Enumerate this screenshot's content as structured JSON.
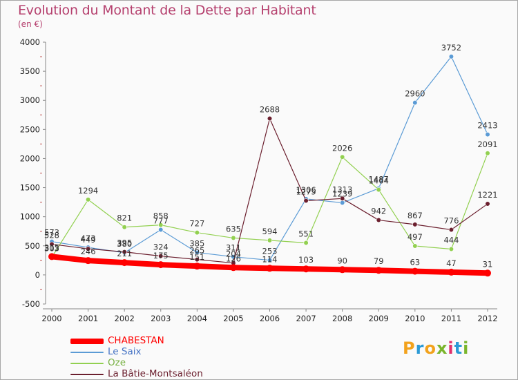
{
  "title": "Evolution du Montant de la Dette par Habitant",
  "subtitle": "(en €)",
  "logo": {
    "letters": [
      "P",
      "r",
      "o",
      "x",
      "i",
      "t",
      "i"
    ],
    "colors": [
      "#f2a21c",
      "#2b9ad6",
      "#f2a21c",
      "#7ab52c",
      "#e1306c",
      "#2b9ad6",
      "#7ab52c"
    ]
  },
  "chart_data": {
    "type": "line",
    "x": [
      "2000",
      "2001",
      "2002",
      "2003",
      "2004",
      "2005",
      "2006",
      "2007",
      "2008",
      "2009",
      "2010",
      "2011",
      "2012"
    ],
    "ylim": [
      -500,
      4000
    ],
    "yticks": [
      -500,
      0,
      500,
      1000,
      1500,
      2000,
      2500,
      3000,
      3500,
      4000
    ],
    "grid": false,
    "legend_position": "bottom-left",
    "series": [
      {
        "name": "CHABESTAN",
        "color": "#ff0000",
        "width": 8,
        "label_color": "#ff0000",
        "values": [
          315,
          246,
          211,
          175,
          151,
          126,
          114,
          103,
          90,
          79,
          63,
          47,
          31
        ]
      },
      {
        "name": "Le Saix",
        "color": "#5b9bd5",
        "width": 1.2,
        "label_color": "#4472c4",
        "values": [
          573,
          473,
          380,
          777,
          385,
          311,
          253,
          1306,
          1239,
          1487,
          2960,
          3752,
          2413
        ]
      },
      {
        "name": "Oze",
        "color": "#92d050",
        "width": 1.2,
        "label_color": "#76b041",
        "values": [
          303,
          1294,
          821,
          858,
          727,
          635,
          594,
          551,
          2026,
          1464,
          497,
          444,
          2091
        ]
      },
      {
        "name": "La Bâtie-Montsaléon",
        "color": "#6b1f2e",
        "width": 1.2,
        "label_color": "#6b1f2e",
        "values": [
          528,
          449,
          395,
          324,
          265,
          204,
          2688,
          1275,
          1313,
          942,
          867,
          776,
          1221
        ]
      }
    ]
  }
}
